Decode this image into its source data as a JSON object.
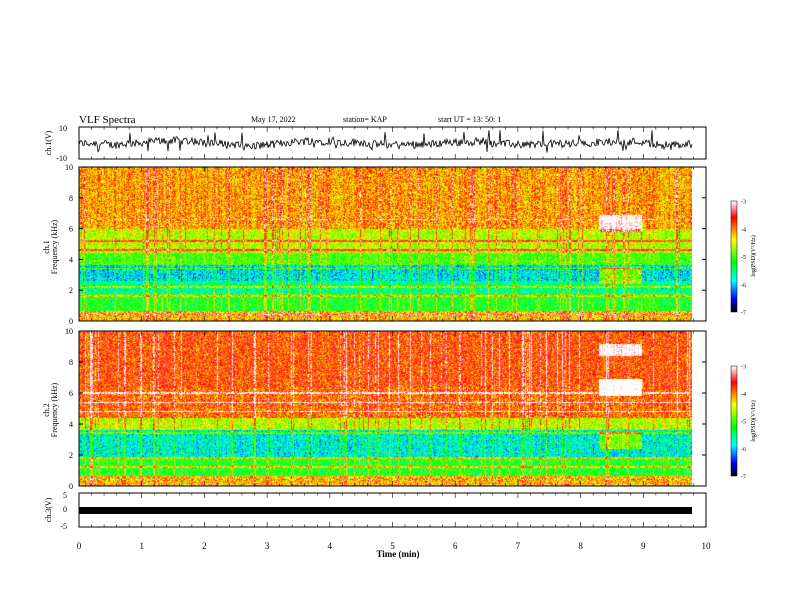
{
  "header": {
    "title": "VLF Spectra",
    "date": "May 17, 2022",
    "station": "station= KAP",
    "start_ut": "start UT =  13: 50: 1"
  },
  "colorbar": {
    "label": "log(PSD)(V²/Hz)",
    "ticks": [
      "-3",
      "-4",
      "-5",
      "-6",
      "-7"
    ],
    "colors": [
      "#ffffff",
      "#ff0000",
      "#ffff00",
      "#00ff00",
      "#00ffff",
      "#0000ff",
      "#000000"
    ]
  },
  "chart_data": [
    {
      "type": "line",
      "panel": "ch1-voltage",
      "ylabel": "ch.1(V)",
      "ylim": [
        -10,
        10
      ],
      "yticks": [
        "10",
        "-10"
      ],
      "xlim": [
        0,
        10
      ],
      "description_values": "noisy waveform fluctuating roughly between -6 and 8 V",
      "y_range_observed": [
        -6,
        8
      ]
    },
    {
      "type": "heatmap",
      "panel": "ch1-spectrogram",
      "ylabel": "ch.1 Frequency (kHz)",
      "ylim": [
        0,
        10
      ],
      "yticks": [
        "0",
        "2",
        "4",
        "6",
        "8",
        "10"
      ],
      "xlim": [
        0,
        10
      ],
      "zlim": [
        -7,
        -3
      ],
      "horizontal_lines_khz": [
        0.4,
        1.6,
        2.2,
        3.4,
        4.6,
        5.2,
        6.6
      ],
      "bands_khz": [
        {
          "range": [
            0,
            0.6
          ],
          "level": -4.2
        },
        {
          "range": [
            0.6,
            1.8
          ],
          "level": -5.2
        },
        {
          "range": [
            1.8,
            2.6
          ],
          "level": -5.6
        },
        {
          "range": [
            2.6,
            3.6
          ],
          "level": -5.9
        },
        {
          "range": [
            3.6,
            4.4
          ],
          "level": -5.0
        },
        {
          "range": [
            4.4,
            6.0
          ],
          "level": -4.6
        },
        {
          "range": [
            6.0,
            10.0
          ],
          "level": -4.1
        }
      ]
    },
    {
      "type": "heatmap",
      "panel": "ch2-spectrogram",
      "ylabel": "ch.2 Frequency (kHz)",
      "ylim": [
        0,
        10
      ],
      "yticks": [
        "0",
        "2",
        "4",
        "6",
        "8",
        "10"
      ],
      "xlim": [
        0,
        10
      ],
      "zlim": [
        -7,
        -3
      ],
      "horizontal_lines_khz": [
        0.4,
        1.2,
        1.8,
        3.4,
        4.8,
        5.4,
        6.0
      ],
      "bands_khz": [
        {
          "range": [
            0,
            0.6
          ],
          "level": -4.2
        },
        {
          "range": [
            0.6,
            1.8
          ],
          "level": -5.2
        },
        {
          "range": [
            1.8,
            3.6
          ],
          "level": -5.8
        },
        {
          "range": [
            3.6,
            4.4
          ],
          "level": -4.6
        },
        {
          "range": [
            4.4,
            6.4
          ],
          "level": -3.9
        },
        {
          "range": [
            6.4,
            10.0
          ],
          "level": -3.8
        }
      ]
    },
    {
      "type": "line",
      "panel": "ch3-voltage",
      "ylabel": "ch.3(V)",
      "ylim": [
        -5,
        5
      ],
      "yticks": [
        "5",
        "0",
        "-5"
      ],
      "xlim": [
        0,
        10
      ],
      "y_constant": -0.3
    }
  ],
  "xaxis": {
    "label": "Time (min)",
    "ticks": [
      "0",
      "1",
      "2",
      "3",
      "4",
      "5",
      "6",
      "7",
      "8",
      "9",
      "10"
    ]
  }
}
